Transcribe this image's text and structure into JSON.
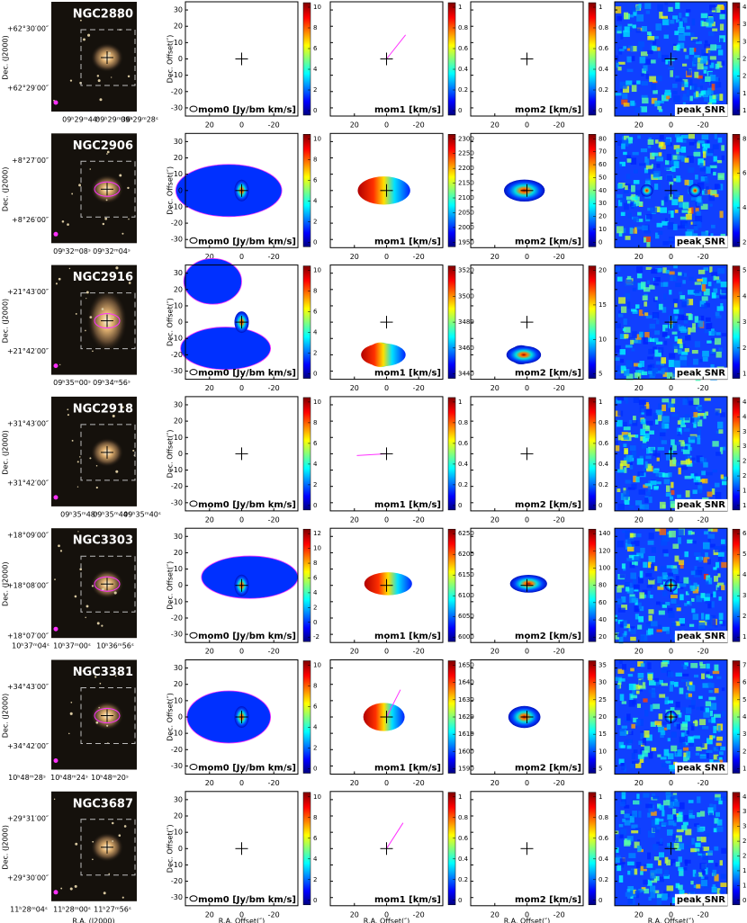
{
  "axes": {
    "offset_ylabel": "Dec. Offset(″)",
    "offset_xlabel": "R.A. Offset(″)",
    "optical_ylabel": "Dec. (J2000)",
    "optical_xlabel": "R.A. (J2000)",
    "offset_yticks": [
      30,
      20,
      10,
      0,
      -10,
      -20,
      -30
    ],
    "offset_xticks": [
      20,
      0,
      -20
    ],
    "offset_lim": [
      35,
      -35
    ]
  },
  "panel_labels": [
    "mom0 [Jy/bm km/s]",
    "mom1 [km/s]",
    "mom2 [km/s]",
    "peak SNR"
  ],
  "rows": [
    {
      "name": "NGC2880",
      "dec": [
        "+62°30′00″",
        "+62°29′00″"
      ],
      "ra": [
        "09ʰ29ᵐ44ˢ",
        "09ʰ29ᵐ36ˢ",
        "09ʰ29ᵐ28ˢ"
      ],
      "colorbars": [
        [
          0,
          2,
          4,
          6,
          8,
          10
        ],
        [
          0,
          0.2,
          0.4,
          0.6,
          0.8,
          1
        ],
        [
          0,
          0.2,
          0.4,
          0.6,
          0.8,
          1
        ],
        [
          1,
          1.5,
          2,
          2.5,
          3,
          3.5,
          4
        ]
      ]
    },
    {
      "name": "NGC2906",
      "dec": [
        "+8°27′00″",
        "+8°26′00″"
      ],
      "ra": [
        "09ʰ32ᵐ08ˢ",
        "09ʰ32ᵐ04ˢ"
      ],
      "colorbars": [
        [
          0,
          2,
          4,
          6,
          8,
          10
        ],
        [
          1950,
          2000,
          2050,
          2100,
          2150,
          2200,
          2250,
          2300
        ],
        [
          0,
          10,
          20,
          30,
          40,
          50,
          60,
          70,
          80
        ],
        [
          2,
          4,
          6,
          8
        ]
      ]
    },
    {
      "name": "NGC2916",
      "dec": [
        "+21°43′00″",
        "+21°42′00″"
      ],
      "ra": [
        "09ʰ35ᵐ00ˢ",
        "09ʰ34ᵐ56ˢ"
      ],
      "colorbars": [
        [
          0,
          2,
          4,
          6,
          8,
          10
        ],
        [
          3440,
          3460,
          3480,
          3500,
          3520
        ],
        [
          5,
          10,
          15,
          20
        ],
        [
          1,
          2,
          3,
          4,
          5
        ]
      ]
    },
    {
      "name": "NGC2918",
      "dec": [
        "+31°43′00″",
        "+31°42′00″"
      ],
      "ra": [
        "09ʰ35ᵐ48ˢ",
        "09ʰ35ᵐ44ˢ",
        "09ʰ35ᵐ40ˢ"
      ],
      "colorbars": [
        [
          0,
          2,
          4,
          6,
          8,
          10
        ],
        [
          0,
          0.2,
          0.4,
          0.6,
          0.8,
          1
        ],
        [
          0,
          0.2,
          0.4,
          0.6,
          0.8,
          1
        ],
        [
          1,
          1.5,
          2,
          2.5,
          3,
          3.5,
          4,
          4.5
        ]
      ]
    },
    {
      "name": "NGC3303",
      "dec": [
        "+18°09′00″",
        "+18°08′00″",
        "+18°07′00″"
      ],
      "ra": [
        "10ʰ37ᵐ04ˢ",
        "10ʰ37ᵐ00ˢ",
        "10ʰ36ᵐ56ˢ"
      ],
      "colorbars": [
        [
          -2,
          0,
          2,
          4,
          6,
          8,
          10,
          12
        ],
        [
          6000,
          6050,
          6100,
          6150,
          6200,
          6250
        ],
        [
          20,
          40,
          60,
          80,
          100,
          120,
          140
        ],
        [
          1,
          2,
          3,
          4,
          5,
          6
        ]
      ]
    },
    {
      "name": "NGC3381",
      "dec": [
        "+34°43′00″",
        "+34°42′00″"
      ],
      "ra": [
        "10ʰ48ᵐ28ˢ",
        "10ʰ48ᵐ24ˢ",
        "10ʰ48ᵐ20ˢ"
      ],
      "colorbars": [
        [
          0,
          2,
          4,
          6,
          8,
          10
        ],
        [
          1590,
          1600,
          1610,
          1620,
          1630,
          1640,
          1650
        ],
        [
          5,
          10,
          15,
          20,
          25,
          30,
          35
        ],
        [
          1,
          2,
          3,
          4,
          5,
          6,
          7
        ]
      ]
    },
    {
      "name": "NGC3687",
      "dec": [
        "+29°31′00″",
        "+29°30′00″"
      ],
      "ra": [
        "11ʰ28ᵐ04ˢ",
        "11ʰ28ᵐ00ˢ",
        "11ʰ27ᵐ56ˢ"
      ],
      "colorbars": [
        [
          0,
          2,
          4,
          6,
          8,
          10
        ],
        [
          0,
          0.2,
          0.4,
          0.6,
          0.8,
          1
        ],
        [
          0,
          0.2,
          0.4,
          0.6,
          0.8,
          1
        ],
        [
          0.5,
          1,
          1.5,
          2,
          2.5,
          3,
          3.5,
          4
        ]
      ]
    }
  ]
}
